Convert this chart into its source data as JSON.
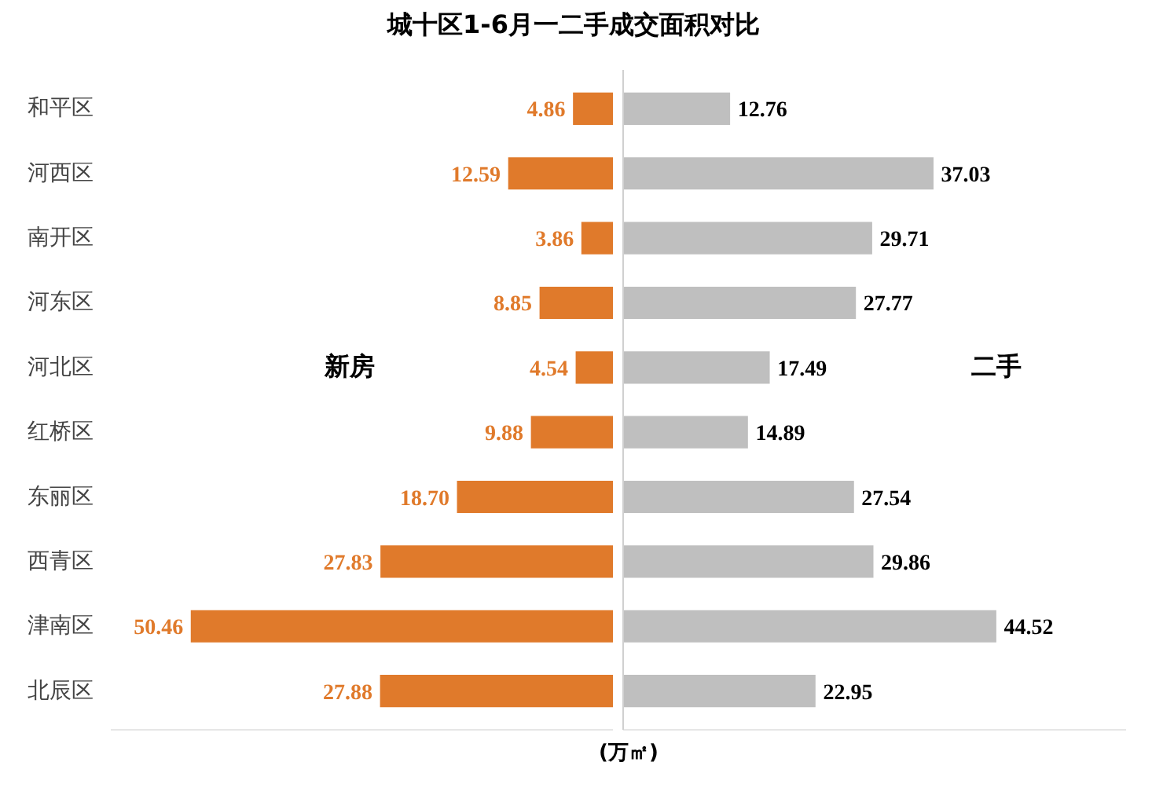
{
  "chart_data": [
    {
      "type": "bar",
      "orientation": "horizontal",
      "title": "城十区1-6月一二手成交面积对比",
      "xlabel": "(万㎡)",
      "xlim": [
        60,
        0
      ],
      "tick_labels": "y",
      "legend": false,
      "grid": false,
      "categories": [
        "和平区",
        "河西区",
        "南开区",
        "河东区",
        "河北区",
        "红桥区",
        "东丽区",
        "西青区",
        "津南区",
        "北辰区"
      ],
      "series": [
        {
          "name": "新房",
          "color": "#e07a2b",
          "values": [
            4.86,
            12.59,
            3.86,
            8.85,
            4.54,
            9.88,
            18.7,
            27.83,
            50.46,
            27.88
          ],
          "value_labels": [
            "4.86",
            "12.59",
            "3.86",
            "8.85",
            "4.54",
            "9.88",
            "18.70",
            "27.83",
            "50.46",
            "27.88"
          ]
        }
      ]
    },
    {
      "type": "bar",
      "orientation": "horizontal",
      "xlim": [
        0,
        60
      ],
      "tick_labels": false,
      "legend": false,
      "grid": false,
      "categories": [
        null,
        null,
        null,
        null,
        null,
        null,
        null,
        null,
        null,
        null
      ],
      "series": [
        {
          "name": "二手",
          "color": "#bfbfbf",
          "values": [
            12.76,
            37.03,
            29.71,
            27.77,
            17.49,
            14.89,
            27.54,
            29.86,
            44.52,
            22.95
          ],
          "value_labels": [
            "12.76",
            "37.03",
            "29.71",
            "27.77",
            "17.49",
            "14.89",
            "27.54",
            "29.86",
            "44.52",
            "22.95"
          ]
        }
      ]
    }
  ]
}
